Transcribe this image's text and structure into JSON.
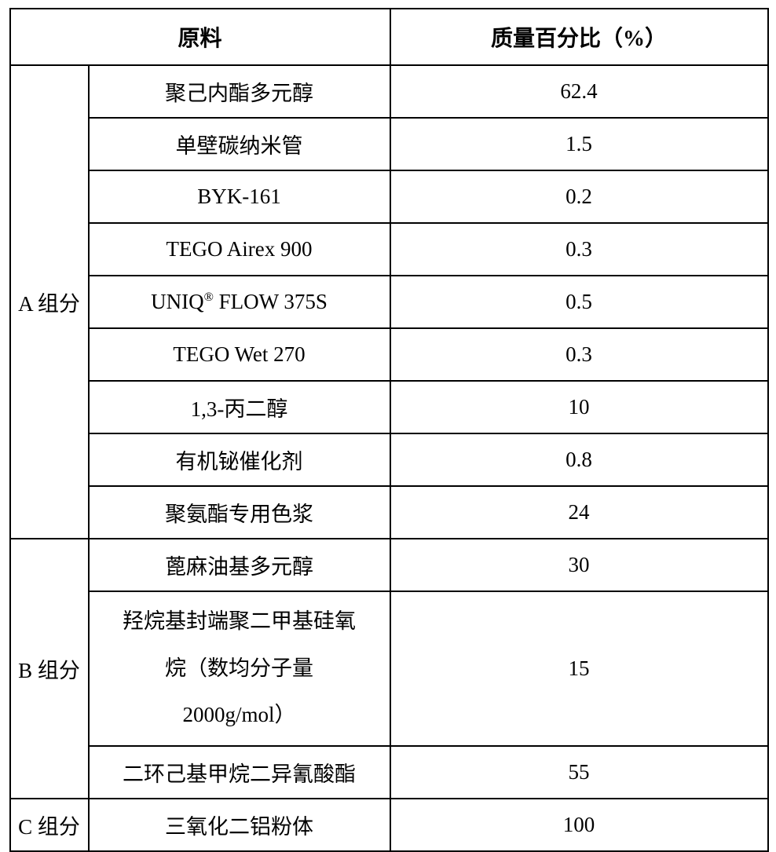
{
  "headers": {
    "material": "原料",
    "percent": "质量百分比（%）"
  },
  "groups": {
    "a": "A 组分",
    "b": "B 组分",
    "c": "C 组分"
  },
  "rows": {
    "a1": {
      "material": "聚己内酯多元醇",
      "value": "62.4"
    },
    "a2": {
      "material": "单壁碳纳米管",
      "value": "1.5"
    },
    "a3": {
      "material": "BYK-161",
      "value": "0.2"
    },
    "a4": {
      "material": "TEGO Airex 900",
      "value": "0.3"
    },
    "a5": {
      "material_prefix": "UNIQ",
      "material_sup": "®",
      "material_suffix": " FLOW 375S",
      "value": "0.5"
    },
    "a6": {
      "material": "TEGO Wet 270",
      "value": "0.3"
    },
    "a7": {
      "material": "1,3-丙二醇",
      "value": "10"
    },
    "a8": {
      "material": "有机铋催化剂",
      "value": "0.8"
    },
    "a9": {
      "material": "聚氨酯专用色浆",
      "value": "24"
    },
    "b1": {
      "material": "蓖麻油基多元醇",
      "value": "30"
    },
    "b2": {
      "line1": "羟烷基封端聚二甲基硅氧",
      "line2": "烷（数均分子量",
      "line3": "2000g/mol）",
      "value": "15"
    },
    "b3": {
      "material": "二环己基甲烷二异氰酸酯",
      "value": "55"
    },
    "c1": {
      "material": "三氧化二铝粉体",
      "value": "100"
    }
  },
  "styles": {
    "border_color": "#000000",
    "background_color": "#ffffff",
    "text_color": "#000000",
    "font_size_header": 28,
    "font_size_body": 27
  }
}
